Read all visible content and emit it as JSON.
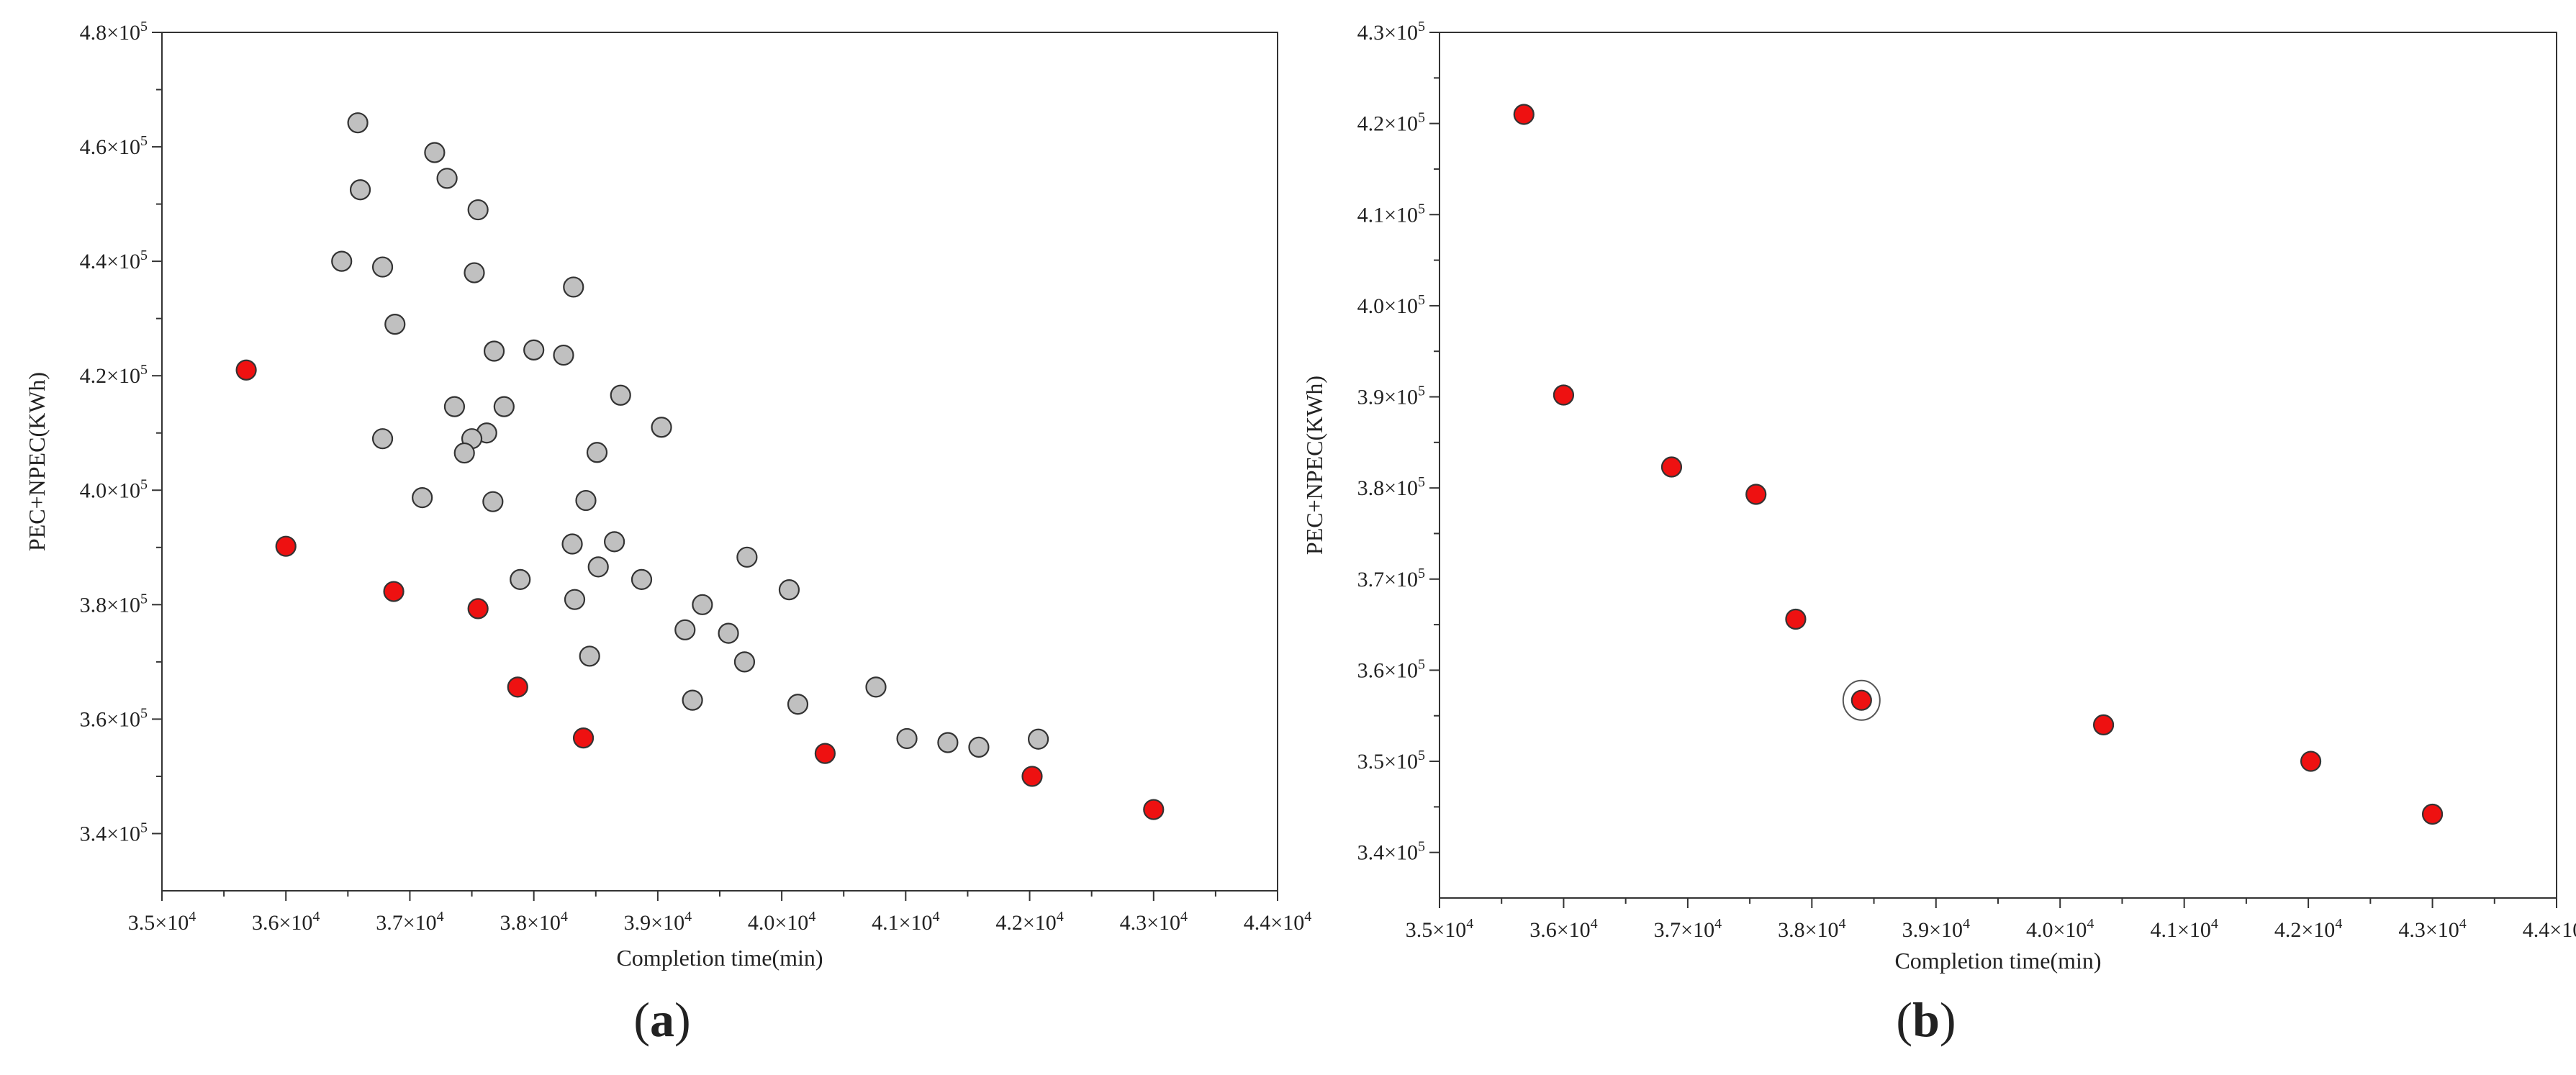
{
  "chart_data": [
    {
      "panel": "(a)",
      "panel_letter": "a",
      "type": "scatter",
      "xlabel": "Completion time(min)",
      "ylabel": "PEC+NPEC(KWh)",
      "xlim": [
        35000,
        44000
      ],
      "ylim": [
        330000,
        480000
      ],
      "xticks": [
        35000,
        36000,
        37000,
        38000,
        39000,
        40000,
        41000,
        42000,
        43000,
        44000
      ],
      "yticks": [
        340000,
        360000,
        380000,
        400000,
        420000,
        440000,
        460000,
        480000
      ],
      "x_tick_labels": [
        {
          "mantissa": "3.5×10",
          "exp": "4"
        },
        {
          "mantissa": "3.6×10",
          "exp": "4"
        },
        {
          "mantissa": "3.7×10",
          "exp": "4"
        },
        {
          "mantissa": "3.8×10",
          "exp": "4"
        },
        {
          "mantissa": "3.9×10",
          "exp": "4"
        },
        {
          "mantissa": "4.0×10",
          "exp": "4"
        },
        {
          "mantissa": "4.1×10",
          "exp": "4"
        },
        {
          "mantissa": "4.2×10",
          "exp": "4"
        },
        {
          "mantissa": "4.3×10",
          "exp": "4"
        },
        {
          "mantissa": "4.4×10",
          "exp": "4"
        }
      ],
      "y_tick_labels": [
        {
          "mantissa": "3.4×10",
          "exp": "5"
        },
        {
          "mantissa": "3.6×10",
          "exp": "5"
        },
        {
          "mantissa": "3.8×10",
          "exp": "5"
        },
        {
          "mantissa": "4.0×10",
          "exp": "5"
        },
        {
          "mantissa": "4.2×10",
          "exp": "5"
        },
        {
          "mantissa": "4.4×10",
          "exp": "5"
        },
        {
          "mantissa": "4.6×10",
          "exp": "5"
        },
        {
          "mantissa": "4.8×10",
          "exp": "5"
        }
      ],
      "grid": false,
      "series": [
        {
          "color": "#c0c0c0",
          "edge_color": "#333333",
          "points": [
            [
              36580,
              464200
            ],
            [
              36600,
              452500
            ],
            [
              37200,
              459000
            ],
            [
              37300,
              454500
            ],
            [
              37550,
              449000
            ],
            [
              36450,
              440000
            ],
            [
              36780,
              439000
            ],
            [
              37520,
              438000
            ],
            [
              38320,
              435500
            ],
            [
              36880,
              429000
            ],
            [
              37680,
              424300
            ],
            [
              38000,
              424500
            ],
            [
              38240,
              423600
            ],
            [
              37360,
              414600
            ],
            [
              37760,
              414600
            ],
            [
              38700,
              416600
            ],
            [
              36780,
              409000
            ],
            [
              37620,
              410000
            ],
            [
              37500,
              409000
            ],
            [
              37440,
              406500
            ],
            [
              38510,
              406600
            ],
            [
              39030,
              411000
            ],
            [
              37100,
              398700
            ],
            [
              37670,
              398000
            ],
            [
              38420,
              398200
            ],
            [
              38310,
              390600
            ],
            [
              38650,
              391000
            ],
            [
              39720,
              388300
            ],
            [
              38520,
              386600
            ],
            [
              37890,
              384400
            ],
            [
              38870,
              384400
            ],
            [
              40060,
              382600
            ],
            [
              38330,
              380900
            ],
            [
              39360,
              380000
            ],
            [
              39220,
              375600
            ],
            [
              39570,
              375000
            ],
            [
              38450,
              371000
            ],
            [
              39700,
              370000
            ],
            [
              40760,
              365600
            ],
            [
              39280,
              363300
            ],
            [
              40130,
              362600
            ],
            [
              41010,
              356600
            ],
            [
              41340,
              355900
            ],
            [
              41590,
              355100
            ],
            [
              42070,
              356500
            ]
          ]
        },
        {
          "color": "#ee1111",
          "edge_color": "#333333",
          "points": [
            [
              35680,
              421000
            ],
            [
              36000,
              390200
            ],
            [
              36870,
              382300
            ],
            [
              37550,
              379300
            ],
            [
              37870,
              365600
            ],
            [
              38400,
              356700
            ],
            [
              40350,
              354000
            ],
            [
              42020,
              350000
            ],
            [
              43000,
              344200
            ]
          ]
        }
      ]
    },
    {
      "panel": "(b)",
      "panel_letter": "b",
      "type": "scatter",
      "xlabel": "Completion time(min)",
      "ylabel": "PEC+NPEC(KWh)",
      "xlim": [
        35000,
        44000
      ],
      "ylim": [
        335000,
        430000
      ],
      "xticks": [
        35000,
        36000,
        37000,
        38000,
        39000,
        40000,
        41000,
        42000,
        43000,
        44000
      ],
      "yticks": [
        340000,
        350000,
        360000,
        370000,
        380000,
        390000,
        400000,
        410000,
        420000,
        430000
      ],
      "x_tick_labels": [
        {
          "mantissa": "3.5×10",
          "exp": "4"
        },
        {
          "mantissa": "3.6×10",
          "exp": "4"
        },
        {
          "mantissa": "3.7×10",
          "exp": "4"
        },
        {
          "mantissa": "3.8×10",
          "exp": "4"
        },
        {
          "mantissa": "3.9×10",
          "exp": "4"
        },
        {
          "mantissa": "4.0×10",
          "exp": "4"
        },
        {
          "mantissa": "4.1×10",
          "exp": "4"
        },
        {
          "mantissa": "4.2×10",
          "exp": "4"
        },
        {
          "mantissa": "4.3×10",
          "exp": "4"
        },
        {
          "mantissa": "4.4×10",
          "exp": "4"
        }
      ],
      "y_tick_labels": [
        {
          "mantissa": "3.4×10",
          "exp": "5"
        },
        {
          "mantissa": "3.5×10",
          "exp": "5"
        },
        {
          "mantissa": "3.6×10",
          "exp": "5"
        },
        {
          "mantissa": "3.7×10",
          "exp": "5"
        },
        {
          "mantissa": "3.8×10",
          "exp": "5"
        },
        {
          "mantissa": "3.9×10",
          "exp": "5"
        },
        {
          "mantissa": "4.0×10",
          "exp": "5"
        },
        {
          "mantissa": "4.1×10",
          "exp": "5"
        },
        {
          "mantissa": "4.2×10",
          "exp": "5"
        },
        {
          "mantissa": "4.3×10",
          "exp": "5"
        }
      ],
      "grid": false,
      "series": [
        {
          "color": "#ee1111",
          "edge_color": "#333333",
          "points": [
            [
              35680,
              421000
            ],
            [
              36000,
              390200
            ],
            [
              36870,
              382300
            ],
            [
              37550,
              379300
            ],
            [
              37870,
              365600
            ],
            [
              38400,
              356700
            ],
            [
              40350,
              354000
            ],
            [
              42020,
              350000
            ],
            [
              43000,
              344200
            ]
          ]
        }
      ],
      "annotation": {
        "type": "circle",
        "point": [
          38400,
          356700
        ]
      }
    }
  ]
}
